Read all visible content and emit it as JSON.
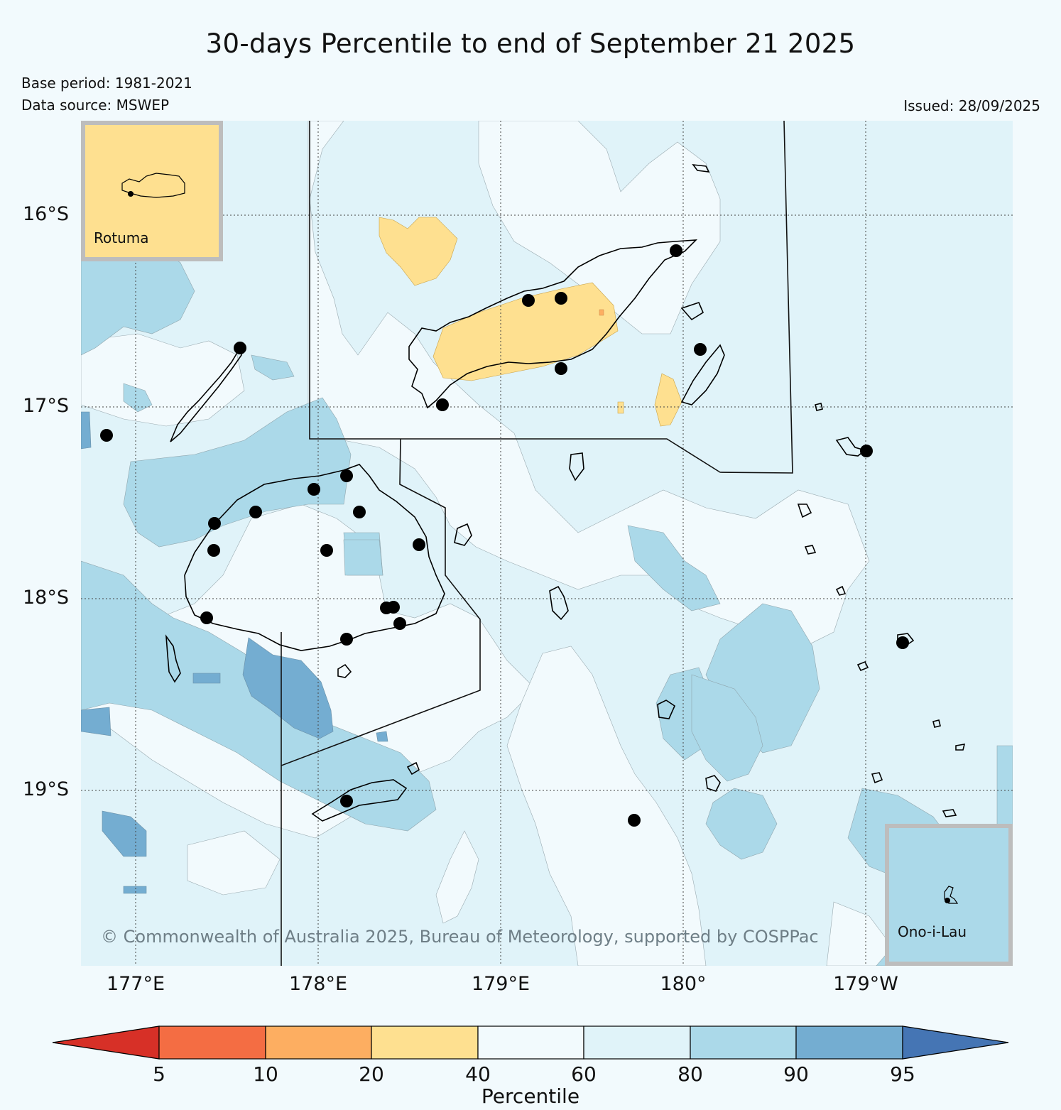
{
  "title": "30-days Percentile to end of September 21 2025",
  "base_period": "Base period: 1981-2021",
  "data_source": "Data source: MSWEP",
  "issued": "Issued: 28/09/2025",
  "lat_labels": [
    "16°S",
    "17°S",
    "18°S",
    "19°S"
  ],
  "lon_labels": [
    "177°E",
    "178°E",
    "179°E",
    "180°",
    "179°W"
  ],
  "insets": {
    "rotuma": {
      "label": "Rotuma",
      "fill": "#fee090"
    },
    "ono": {
      "label": "Ono-i-Lau",
      "fill": "#abd9e9"
    }
  },
  "copyright": "© Commonwealth of Australia 2025, Bureau of Meteorology, supported by COSPPac",
  "colorbar": {
    "label": "Percentile",
    "ticks": [
      "5",
      "10",
      "20",
      "40",
      "60",
      "80",
      "90",
      "95"
    ],
    "colors": [
      "#d73027",
      "#f46d43",
      "#fdae61",
      "#fee090",
      "#f2fafd",
      "#e0f3f9",
      "#abd9e9",
      "#74add1",
      "#4575b4"
    ]
  },
  "legend_classes": {
    "below_5": "#d73027",
    "p10_20": "#fdae61",
    "p20_40": "#fee090",
    "p40_60": "#f2fafd",
    "p60_80": "#e0f3f9",
    "p80_90": "#abd9e9",
    "p90_95": "#74add1",
    "above_95": "#4575b4"
  }
}
